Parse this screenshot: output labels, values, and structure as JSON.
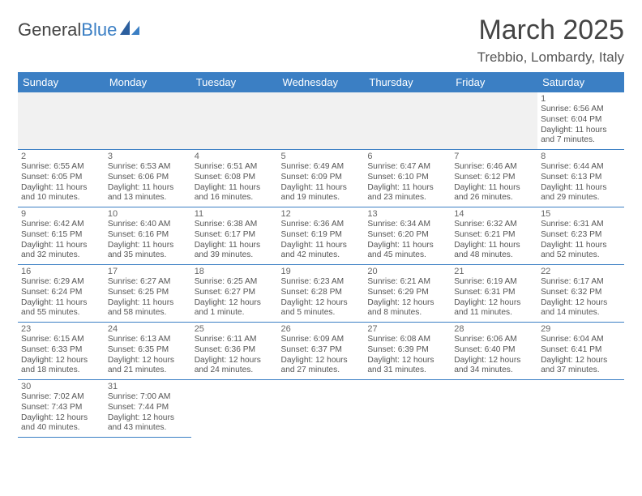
{
  "brand": {
    "part1": "General",
    "part2": "Blue"
  },
  "title": "March 2025",
  "location": "Trebbio, Lombardy, Italy",
  "columns": [
    "Sunday",
    "Monday",
    "Tuesday",
    "Wednesday",
    "Thursday",
    "Friday",
    "Saturday"
  ],
  "colors": {
    "accent": "#3b7fc4",
    "emptyBg": "#f1f1f1",
    "text": "#555"
  },
  "startOffset": 6,
  "days": [
    {
      "n": 1,
      "sr": "6:56 AM",
      "ss": "6:04 PM",
      "dl": "11 hours and 7 minutes."
    },
    {
      "n": 2,
      "sr": "6:55 AM",
      "ss": "6:05 PM",
      "dl": "11 hours and 10 minutes."
    },
    {
      "n": 3,
      "sr": "6:53 AM",
      "ss": "6:06 PM",
      "dl": "11 hours and 13 minutes."
    },
    {
      "n": 4,
      "sr": "6:51 AM",
      "ss": "6:08 PM",
      "dl": "11 hours and 16 minutes."
    },
    {
      "n": 5,
      "sr": "6:49 AM",
      "ss": "6:09 PM",
      "dl": "11 hours and 19 minutes."
    },
    {
      "n": 6,
      "sr": "6:47 AM",
      "ss": "6:10 PM",
      "dl": "11 hours and 23 minutes."
    },
    {
      "n": 7,
      "sr": "6:46 AM",
      "ss": "6:12 PM",
      "dl": "11 hours and 26 minutes."
    },
    {
      "n": 8,
      "sr": "6:44 AM",
      "ss": "6:13 PM",
      "dl": "11 hours and 29 minutes."
    },
    {
      "n": 9,
      "sr": "6:42 AM",
      "ss": "6:15 PM",
      "dl": "11 hours and 32 minutes."
    },
    {
      "n": 10,
      "sr": "6:40 AM",
      "ss": "6:16 PM",
      "dl": "11 hours and 35 minutes."
    },
    {
      "n": 11,
      "sr": "6:38 AM",
      "ss": "6:17 PM",
      "dl": "11 hours and 39 minutes."
    },
    {
      "n": 12,
      "sr": "6:36 AM",
      "ss": "6:19 PM",
      "dl": "11 hours and 42 minutes."
    },
    {
      "n": 13,
      "sr": "6:34 AM",
      "ss": "6:20 PM",
      "dl": "11 hours and 45 minutes."
    },
    {
      "n": 14,
      "sr": "6:32 AM",
      "ss": "6:21 PM",
      "dl": "11 hours and 48 minutes."
    },
    {
      "n": 15,
      "sr": "6:31 AM",
      "ss": "6:23 PM",
      "dl": "11 hours and 52 minutes."
    },
    {
      "n": 16,
      "sr": "6:29 AM",
      "ss": "6:24 PM",
      "dl": "11 hours and 55 minutes."
    },
    {
      "n": 17,
      "sr": "6:27 AM",
      "ss": "6:25 PM",
      "dl": "11 hours and 58 minutes."
    },
    {
      "n": 18,
      "sr": "6:25 AM",
      "ss": "6:27 PM",
      "dl": "12 hours and 1 minute."
    },
    {
      "n": 19,
      "sr": "6:23 AM",
      "ss": "6:28 PM",
      "dl": "12 hours and 5 minutes."
    },
    {
      "n": 20,
      "sr": "6:21 AM",
      "ss": "6:29 PM",
      "dl": "12 hours and 8 minutes."
    },
    {
      "n": 21,
      "sr": "6:19 AM",
      "ss": "6:31 PM",
      "dl": "12 hours and 11 minutes."
    },
    {
      "n": 22,
      "sr": "6:17 AM",
      "ss": "6:32 PM",
      "dl": "12 hours and 14 minutes."
    },
    {
      "n": 23,
      "sr": "6:15 AM",
      "ss": "6:33 PM",
      "dl": "12 hours and 18 minutes."
    },
    {
      "n": 24,
      "sr": "6:13 AM",
      "ss": "6:35 PM",
      "dl": "12 hours and 21 minutes."
    },
    {
      "n": 25,
      "sr": "6:11 AM",
      "ss": "6:36 PM",
      "dl": "12 hours and 24 minutes."
    },
    {
      "n": 26,
      "sr": "6:09 AM",
      "ss": "6:37 PM",
      "dl": "12 hours and 27 minutes."
    },
    {
      "n": 27,
      "sr": "6:08 AM",
      "ss": "6:39 PM",
      "dl": "12 hours and 31 minutes."
    },
    {
      "n": 28,
      "sr": "6:06 AM",
      "ss": "6:40 PM",
      "dl": "12 hours and 34 minutes."
    },
    {
      "n": 29,
      "sr": "6:04 AM",
      "ss": "6:41 PM",
      "dl": "12 hours and 37 minutes."
    },
    {
      "n": 30,
      "sr": "7:02 AM",
      "ss": "7:43 PM",
      "dl": "12 hours and 40 minutes."
    },
    {
      "n": 31,
      "sr": "7:00 AM",
      "ss": "7:44 PM",
      "dl": "12 hours and 43 minutes."
    }
  ],
  "labels": {
    "sunrise": "Sunrise: ",
    "sunset": "Sunset: ",
    "daylight": "Daylight: "
  }
}
